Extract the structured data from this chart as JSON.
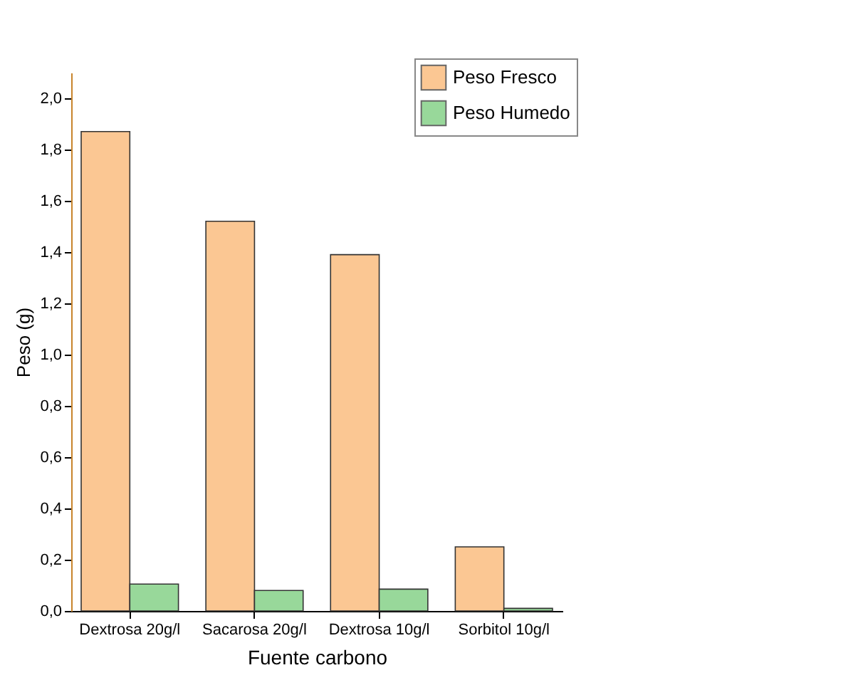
{
  "chart_data": {
    "type": "bar",
    "xlabel": "Fuente carbono",
    "ylabel": "Peso (g)",
    "categories": [
      "Dextrosa 20g/l",
      "Sacarosa 20g/l",
      "Dextrosa 10g/l",
      "Sorbitol 10g/l"
    ],
    "series": [
      {
        "name": "Peso Fresco",
        "color": "#fbc793",
        "values": [
          1.87,
          1.52,
          1.39,
          0.25
        ]
      },
      {
        "name": "Peso Humedo",
        "color": "#98d89a",
        "values": [
          0.105,
          0.08,
          0.085,
          0.01
        ]
      }
    ],
    "ylim": [
      0,
      2.1
    ],
    "yticks": [
      {
        "value": 0,
        "label": "0,0"
      },
      {
        "value": 0.2,
        "label": "0,2"
      },
      {
        "value": 0.4,
        "label": "0,4"
      },
      {
        "value": 0.6,
        "label": "0,6"
      },
      {
        "value": 0.8,
        "label": "0,8"
      },
      {
        "value": 1.0,
        "label": "1,0"
      },
      {
        "value": 1.2,
        "label": "1,2"
      },
      {
        "value": 1.4,
        "label": "1,4"
      },
      {
        "value": 1.6,
        "label": "1,6"
      },
      {
        "value": 1.8,
        "label": "1,8"
      },
      {
        "value": 2.0,
        "label": "2,0"
      }
    ],
    "grid": false,
    "legend": "top right"
  }
}
